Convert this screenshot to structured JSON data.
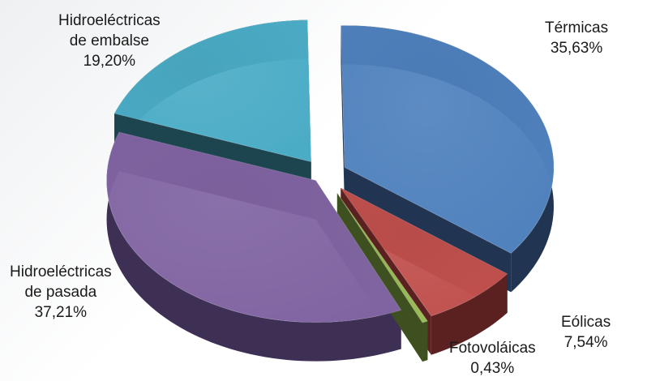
{
  "chart_data": {
    "type": "pie",
    "style": "3d-exploded",
    "slices": [
      {
        "name": "Térmicas",
        "label_lines": [
          "Térmicas"
        ],
        "value": 35.63,
        "value_label": "35,63%",
        "color": "#4f81bd",
        "side_color": "#213553"
      },
      {
        "name": "Eólicas",
        "label_lines": [
          "Eólicas"
        ],
        "value": 7.54,
        "value_label": "7,54%",
        "color": "#c0504d",
        "side_color": "#5a2120"
      },
      {
        "name": "Fotovoláicas",
        "label_lines": [
          "Fotovoláicas"
        ],
        "value": 0.43,
        "value_label": "0,43%",
        "color": "#9bbb59",
        "side_color": "#3f5020"
      },
      {
        "name": "Hidroeléctricas de pasada",
        "label_lines": [
          "Hidroeléctricas",
          "de pasada"
        ],
        "value": 37.21,
        "value_label": "37,21%",
        "color": "#8064a2",
        "side_color": "#3e2f55"
      },
      {
        "name": "Hidroeléctricas de embalse",
        "label_lines": [
          "Hidroeléctricas",
          "de embalse"
        ],
        "value": 19.2,
        "value_label": "19,20%",
        "color": "#4bacc6",
        "side_color": "#1d4550"
      }
    ]
  }
}
